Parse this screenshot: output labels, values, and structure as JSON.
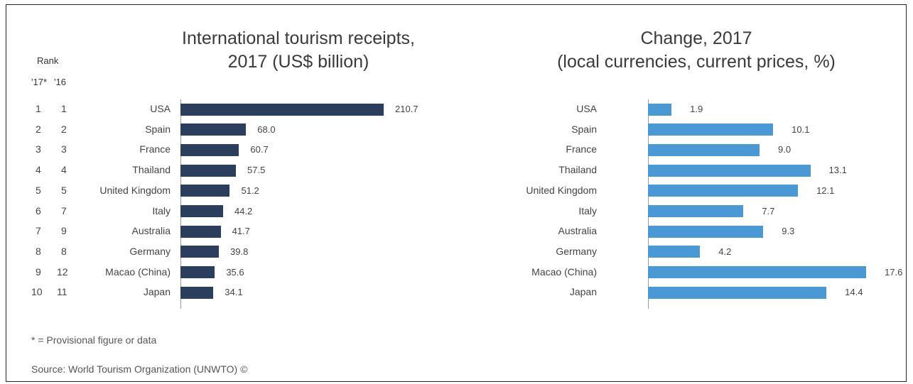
{
  "chart_data": [
    {
      "type": "bar",
      "orientation": "horizontal",
      "title": [
        "International tourism receipts,",
        "2017 (US$ billion)"
      ],
      "categories": [
        "USA",
        "Spain",
        "France",
        "Thailand",
        "United Kingdom",
        "Italy",
        "Australia",
        "Germany",
        "Macao (China)",
        "Japan"
      ],
      "values": [
        210.7,
        68.0,
        60.7,
        57.5,
        51.2,
        44.2,
        41.7,
        39.8,
        35.6,
        34.1
      ],
      "value_labels": [
        "210.7",
        "68.0",
        "60.7",
        "57.5",
        "51.2",
        "44.2",
        "41.7",
        "39.8",
        "35.6",
        "34.1"
      ],
      "xlim": [
        0,
        210.7
      ],
      "color": "#2b3e5e"
    },
    {
      "type": "bar",
      "orientation": "horizontal",
      "title": [
        "Change, 2017",
        "(local currencies, current prices, %)"
      ],
      "categories": [
        "USA",
        "Spain",
        "France",
        "Thailand",
        "United Kingdom",
        "Italy",
        "Australia",
        "Germany",
        "Macao (China)",
        "Japan"
      ],
      "values": [
        1.9,
        10.1,
        9.0,
        13.1,
        12.1,
        7.7,
        9.3,
        4.2,
        17.6,
        14.4
      ],
      "value_labels": [
        "1.9",
        "10.1",
        "9.0",
        "13.1",
        "12.1",
        "7.7",
        "9.3",
        "4.2",
        "17.6",
        "14.4"
      ],
      "xlim": [
        0,
        17.6
      ],
      "color": "#4a98d4"
    }
  ],
  "rank": {
    "heading": "Rank",
    "col_headers": [
      "'17*",
      "'16"
    ],
    "rank_2017": [
      "1",
      "2",
      "3",
      "4",
      "5",
      "6",
      "7",
      "8",
      "9",
      "10"
    ],
    "rank_2016": [
      "1",
      "2",
      "3",
      "4",
      "5",
      "7",
      "9",
      "8",
      "12",
      "11"
    ]
  },
  "footnote": "* = Provisional figure or data",
  "source": "Source: World Tourism Organization (UNWTO) ©"
}
